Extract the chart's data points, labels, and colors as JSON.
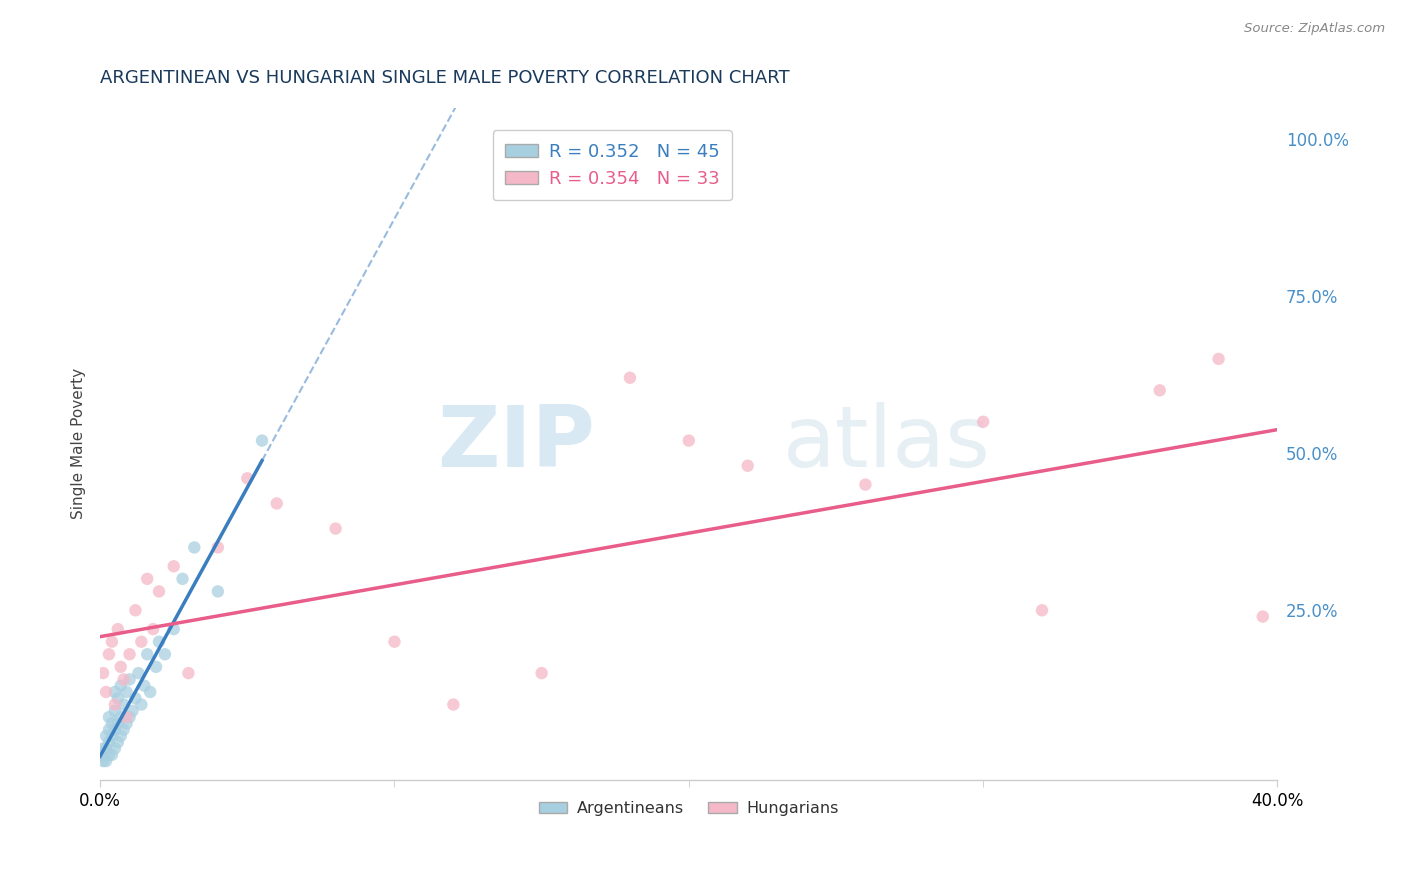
{
  "title": "ARGENTINEAN VS HUNGARIAN SINGLE MALE POVERTY CORRELATION CHART",
  "source": "Source: ZipAtlas.com",
  "ylabel": "Single Male Poverty",
  "y_ticks_labels": [
    "25.0%",
    "50.0%",
    "75.0%",
    "100.0%"
  ],
  "y_tick_vals": [
    0.25,
    0.5,
    0.75,
    1.0
  ],
  "x_range": [
    0.0,
    0.4
  ],
  "y_range": [
    -0.02,
    1.05
  ],
  "legend_label_blue": "Argentineans",
  "legend_label_pink": "Hungarians",
  "R_blue": 0.352,
  "N_blue": 45,
  "R_pink": 0.354,
  "N_pink": 33,
  "blue_scatter_color": "#a8cfe0",
  "pink_scatter_color": "#f5b8c8",
  "blue_line_color": "#3a7ebf",
  "pink_line_color": "#e85d8a",
  "dash_line_color": "#99bbdd",
  "watermark_color": "#c8e4f0",
  "grid_color": "#dddddd",
  "title_color": "#1a3a5c",
  "tick_color": "#4a90c8",
  "argentinean_x": [
    0.0005,
    0.001,
    0.001,
    0.001,
    0.002,
    0.002,
    0.002,
    0.003,
    0.003,
    0.003,
    0.003,
    0.004,
    0.004,
    0.004,
    0.005,
    0.005,
    0.005,
    0.005,
    0.006,
    0.006,
    0.006,
    0.007,
    0.007,
    0.007,
    0.008,
    0.008,
    0.009,
    0.009,
    0.01,
    0.01,
    0.011,
    0.012,
    0.013,
    0.014,
    0.015,
    0.016,
    0.017,
    0.019,
    0.02,
    0.022,
    0.025,
    0.028,
    0.032,
    0.04,
    0.055
  ],
  "argentinean_y": [
    0.02,
    0.01,
    0.02,
    0.03,
    0.01,
    0.03,
    0.05,
    0.02,
    0.04,
    0.06,
    0.08,
    0.02,
    0.05,
    0.07,
    0.03,
    0.06,
    0.09,
    0.12,
    0.04,
    0.07,
    0.11,
    0.05,
    0.08,
    0.13,
    0.06,
    0.1,
    0.07,
    0.12,
    0.08,
    0.14,
    0.09,
    0.11,
    0.15,
    0.1,
    0.13,
    0.18,
    0.12,
    0.16,
    0.2,
    0.18,
    0.22,
    0.3,
    0.35,
    0.28,
    0.52
  ],
  "hungarian_x": [
    0.001,
    0.002,
    0.003,
    0.004,
    0.005,
    0.006,
    0.007,
    0.008,
    0.009,
    0.01,
    0.012,
    0.014,
    0.016,
    0.018,
    0.02,
    0.025,
    0.03,
    0.04,
    0.05,
    0.06,
    0.08,
    0.1,
    0.12,
    0.15,
    0.18,
    0.2,
    0.22,
    0.26,
    0.3,
    0.32,
    0.36,
    0.38,
    0.395
  ],
  "hungarian_y": [
    0.15,
    0.12,
    0.18,
    0.2,
    0.1,
    0.22,
    0.16,
    0.14,
    0.08,
    0.18,
    0.25,
    0.2,
    0.3,
    0.22,
    0.28,
    0.32,
    0.15,
    0.35,
    0.46,
    0.42,
    0.38,
    0.2,
    0.1,
    0.15,
    0.62,
    0.52,
    0.48,
    0.45,
    0.55,
    0.25,
    0.6,
    0.65,
    0.24
  ]
}
